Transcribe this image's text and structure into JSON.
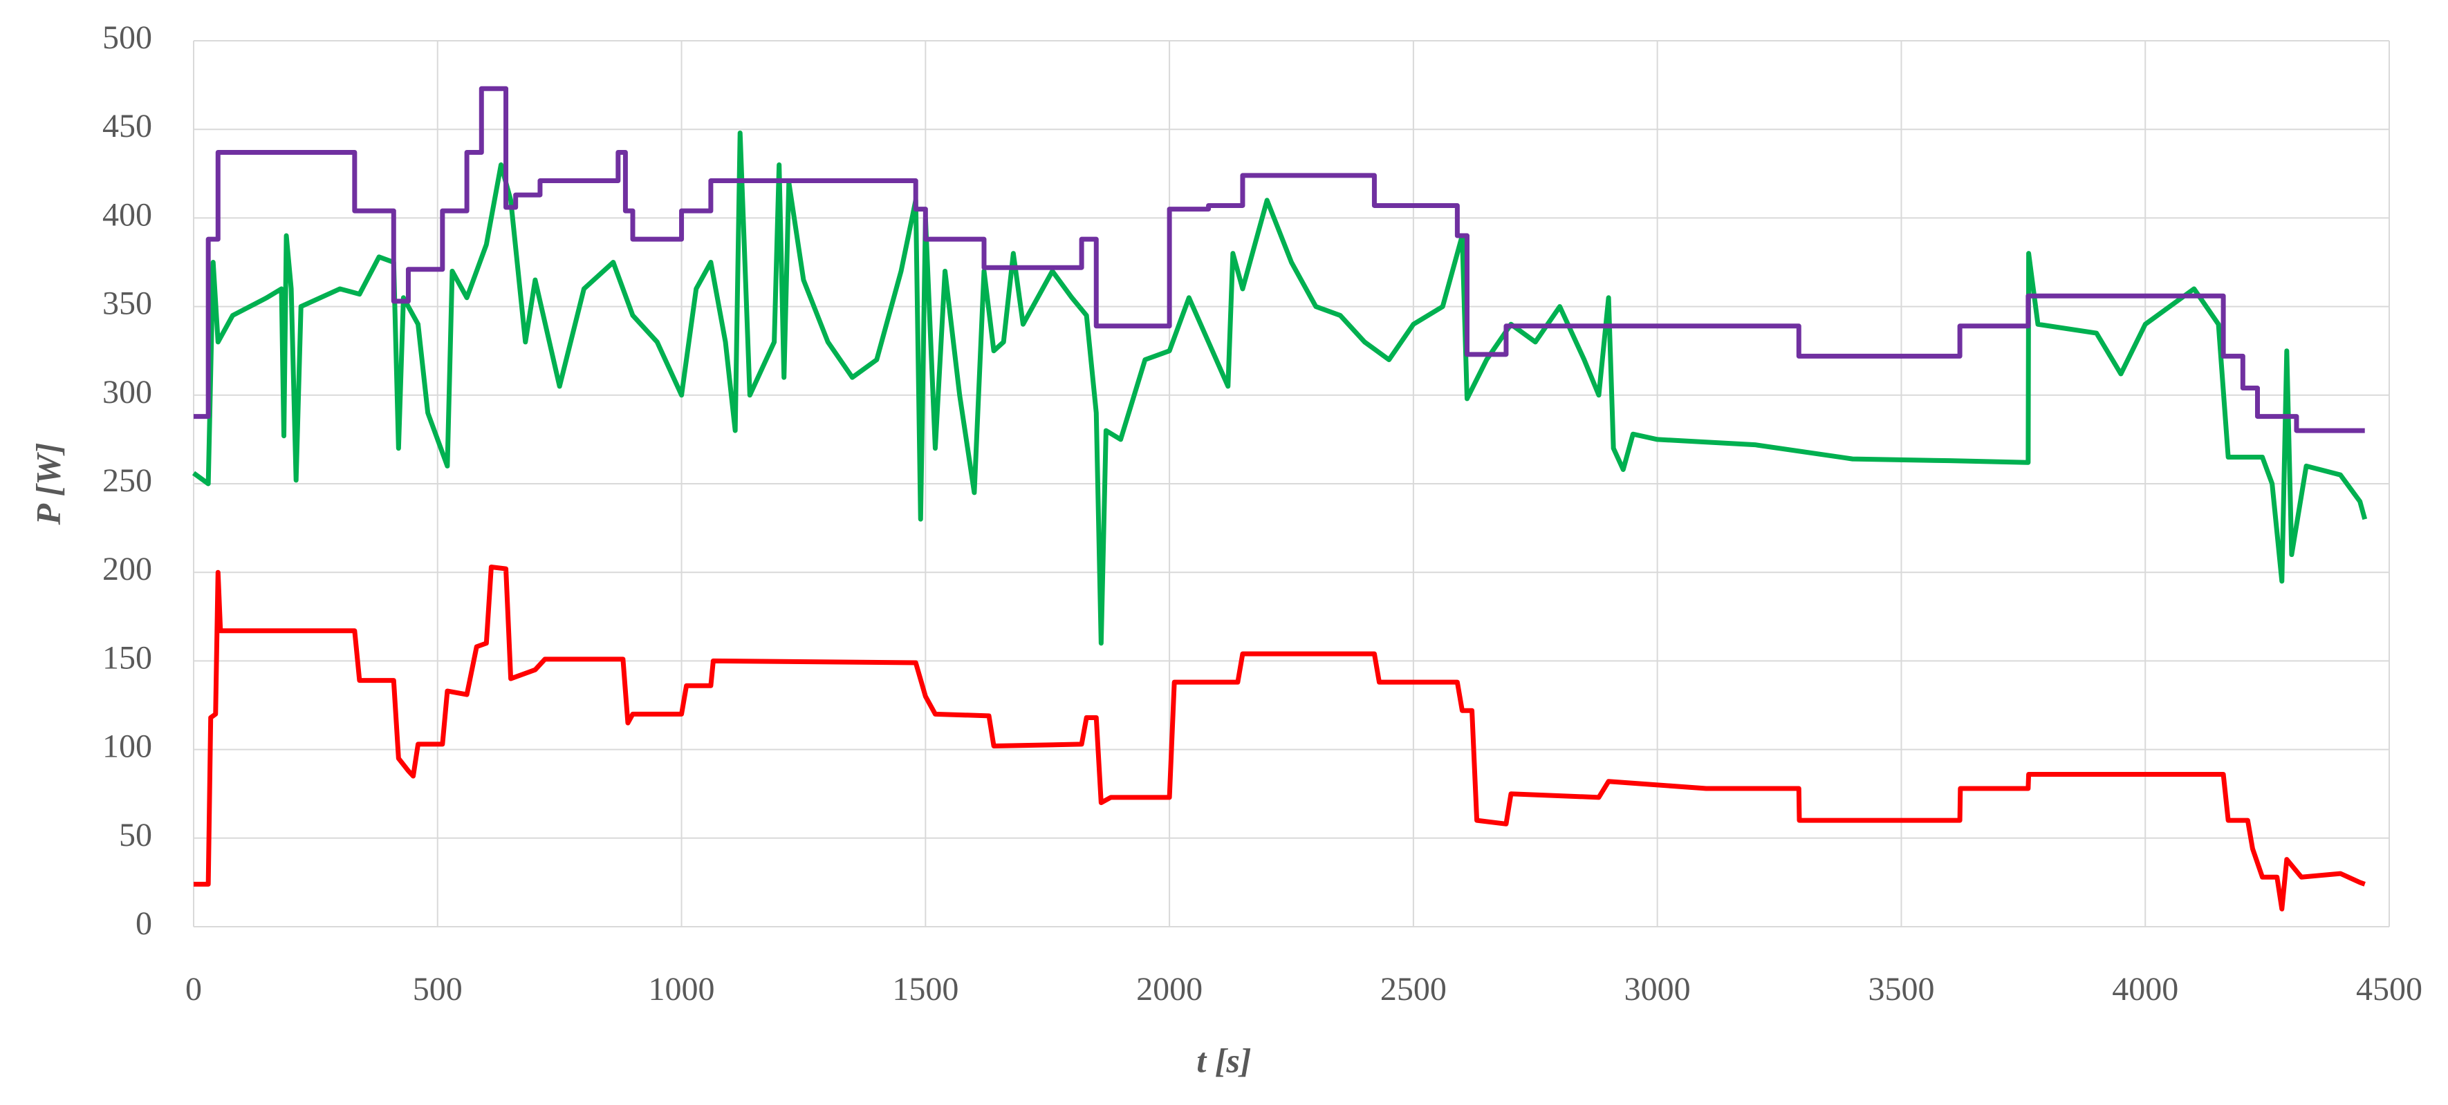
{
  "chart_data": {
    "type": "line",
    "x_label": "t [s]",
    "y_label": "P [W]",
    "xlim": [
      0,
      4500
    ],
    "xticks": [
      0,
      500,
      1000,
      1500,
      2000,
      2500,
      3000,
      3500,
      4000,
      4500
    ],
    "ylim": [
      0,
      500
    ],
    "yticks": [
      0,
      50,
      100,
      150,
      200,
      250,
      300,
      350,
      400,
      450,
      500
    ],
    "grid": true,
    "series": [
      {
        "color": "#00b050",
        "x": [
          0,
          30,
          40,
          50,
          80,
          150,
          180,
          185,
          190,
          200,
          210,
          220,
          300,
          340,
          380,
          410,
          420,
          430,
          460,
          480,
          500,
          520,
          530,
          560,
          600,
          630,
          650,
          680,
          700,
          750,
          800,
          860,
          900,
          950,
          1000,
          1030,
          1060,
          1090,
          1110,
          1120,
          1140,
          1190,
          1200,
          1210,
          1220,
          1250,
          1300,
          1350,
          1400,
          1450,
          1480,
          1490,
          1500,
          1520,
          1540,
          1570,
          1600,
          1620,
          1640,
          1660,
          1680,
          1700,
          1760,
          1800,
          1830,
          1850,
          1860,
          1870,
          1900,
          1950,
          2000,
          2040,
          2080,
          2120,
          2130,
          2150,
          2200,
          2250,
          2300,
          2350,
          2400,
          2450,
          2500,
          2560,
          2600,
          2610,
          2650,
          2700,
          2750,
          2800,
          2850,
          2880,
          2900,
          2910,
          2930,
          2950,
          3000,
          3200,
          3400,
          3600,
          3760,
          3761,
          3780,
          3900,
          3950,
          4000,
          4100,
          4150,
          4170,
          4240,
          4260,
          4280,
          4290,
          4300,
          4330,
          4400,
          4440,
          4450
        ],
        "values": [
          256,
          250,
          375,
          330,
          345,
          355,
          360,
          277,
          390,
          360,
          252,
          350,
          360,
          357,
          378,
          375,
          270,
          355,
          340,
          290,
          275,
          260,
          370,
          355,
          385,
          430,
          410,
          330,
          365,
          305,
          360,
          375,
          345,
          330,
          300,
          360,
          375,
          330,
          280,
          448,
          300,
          330,
          430,
          310,
          420,
          365,
          330,
          310,
          320,
          370,
          410,
          230,
          400,
          270,
          370,
          300,
          245,
          370,
          325,
          330,
          380,
          340,
          370,
          355,
          345,
          290,
          160,
          280,
          275,
          320,
          325,
          355,
          330,
          305,
          380,
          360,
          410,
          375,
          350,
          345,
          330,
          320,
          340,
          350,
          390,
          298,
          320,
          340,
          330,
          350,
          320,
          300,
          355,
          270,
          258,
          278,
          275,
          272,
          264,
          263,
          262,
          380,
          340,
          335,
          312,
          340,
          360,
          340,
          265,
          265,
          250,
          195,
          325,
          210,
          260,
          255,
          240,
          230
        ]
      },
      {
        "color": "#7030a0",
        "x": [
          0,
          30,
          30,
          50,
          50,
          330,
          330,
          410,
          410,
          440,
          440,
          510,
          510,
          560,
          560,
          590,
          590,
          640,
          640,
          660,
          660,
          710,
          710,
          870,
          870,
          885,
          885,
          900,
          900,
          1000,
          1000,
          1060,
          1060,
          1480,
          1480,
          1500,
          1500,
          1620,
          1620,
          1820,
          1820,
          1850,
          1850,
          2000,
          2000,
          2080,
          2080,
          2150,
          2150,
          2420,
          2420,
          2590,
          2590,
          2610,
          2610,
          2690,
          2690,
          3290,
          3290,
          3620,
          3620,
          3760,
          3760,
          4160,
          4160,
          4200,
          4200,
          4230,
          4230,
          4310,
          4310,
          4450
        ],
        "values": [
          288,
          288,
          388,
          388,
          437,
          437,
          404,
          404,
          353,
          353,
          371,
          371,
          404,
          404,
          437,
          437,
          473,
          473,
          406,
          406,
          413,
          413,
          421,
          421,
          437,
          437,
          404,
          404,
          388,
          388,
          404,
          404,
          421,
          421,
          405,
          405,
          388,
          388,
          372,
          372,
          388,
          388,
          339,
          339,
          405,
          405,
          407,
          407,
          424,
          424,
          407,
          407,
          390,
          390,
          323,
          323,
          339,
          339,
          322,
          322,
          339,
          339,
          356,
          356,
          322,
          322,
          304,
          304,
          288,
          288,
          280,
          280
        ]
      },
      {
        "color": "#ff0000",
        "x": [
          0,
          30,
          35,
          45,
          50,
          55,
          330,
          340,
          410,
          420,
          440,
          450,
          460,
          510,
          520,
          560,
          580,
          600,
          610,
          640,
          650,
          700,
          720,
          880,
          890,
          900,
          1000,
          1010,
          1060,
          1065,
          1480,
          1500,
          1520,
          1630,
          1640,
          1820,
          1830,
          1850,
          1860,
          1880,
          2000,
          2010,
          2140,
          2150,
          2420,
          2430,
          2590,
          2600,
          2620,
          2630,
          2690,
          2700,
          2880,
          2900,
          3000,
          3100,
          3290,
          3291,
          3620,
          3621,
          3760,
          3761,
          4160,
          4170,
          4210,
          4220,
          4240,
          4270,
          4280,
          4290,
          4320,
          4400,
          4440,
          4450
        ],
        "values": [
          24,
          24,
          118,
          120,
          200,
          167,
          167,
          139,
          139,
          95,
          88,
          85,
          103,
          103,
          133,
          131,
          158,
          160,
          203,
          202,
          140,
          145,
          151,
          151,
          115,
          120,
          120,
          136,
          136,
          150,
          149,
          130,
          120,
          119,
          102,
          103,
          118,
          118,
          70,
          73,
          73,
          138,
          138,
          154,
          154,
          138,
          138,
          122,
          122,
          60,
          58,
          75,
          73,
          82,
          80,
          78,
          78,
          60,
          60,
          78,
          78,
          86,
          86,
          60,
          60,
          44,
          28,
          28,
          10,
          38,
          28,
          30,
          25,
          24
        ]
      }
    ]
  }
}
